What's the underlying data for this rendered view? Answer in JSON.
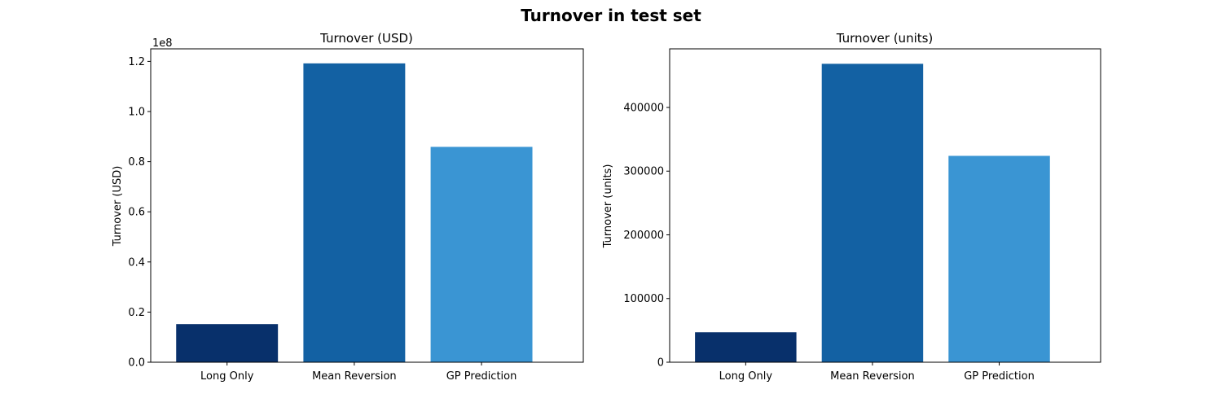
{
  "figure": {
    "suptitle": "Turnover in test set"
  },
  "colors": {
    "long_only": "#08306b",
    "mean_reversion": "#1361a3",
    "gp_prediction": "#3a95d3"
  },
  "chart_data": [
    {
      "type": "bar",
      "title": "Turnover (USD)",
      "xlabel": "",
      "ylabel": "Turnover (USD)",
      "categories": [
        "Long Only",
        "Mean Reversion",
        "GP Prediction"
      ],
      "values": [
        15200000,
        119200000,
        85900000
      ],
      "colors": [
        "#08306b",
        "#1361a3",
        "#3a95d3"
      ],
      "ylim": [
        0,
        125000000
      ],
      "yticks": [
        0,
        20000000,
        40000000,
        60000000,
        80000000,
        100000000,
        120000000
      ],
      "ytick_labels": [
        "0.0",
        "0.2",
        "0.4",
        "0.6",
        "0.8",
        "1.0",
        "1.2"
      ],
      "offset_label": "1e8",
      "grid": false
    },
    {
      "type": "bar",
      "title": "Turnover (units)",
      "xlabel": "",
      "ylabel": "Turnover (units)",
      "categories": [
        "Long Only",
        "Mean Reversion",
        "GP Prediction"
      ],
      "values": [
        47000,
        468500,
        324000
      ],
      "colors": [
        "#08306b",
        "#1361a3",
        "#3a95d3"
      ],
      "ylim": [
        0,
        492000
      ],
      "yticks": [
        0,
        100000,
        200000,
        300000,
        400000
      ],
      "ytick_labels": [
        "0",
        "100000",
        "200000",
        "300000",
        "400000"
      ],
      "offset_label": "",
      "grid": false
    }
  ]
}
